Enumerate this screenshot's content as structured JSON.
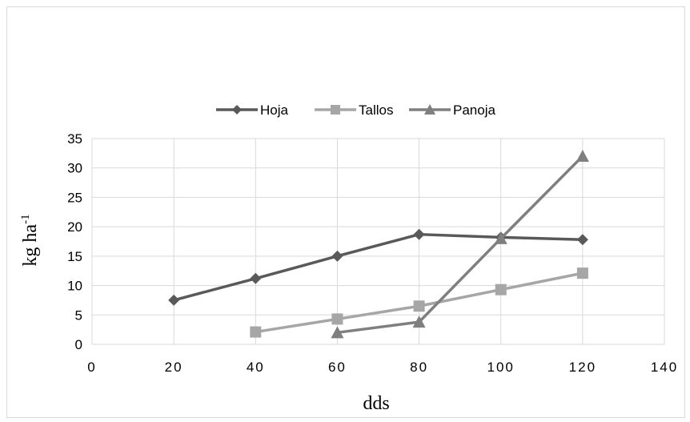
{
  "chart_data": {
    "type": "line",
    "xlabel": "dds",
    "ylabel": "kg ha",
    "ylabel_superscript": "-1",
    "xlim": [
      0,
      140
    ],
    "ylim": [
      0,
      35
    ],
    "xticks": [
      "0",
      "20",
      "40",
      "60",
      "80",
      "100",
      "120",
      "140"
    ],
    "yticks": [
      "0",
      "5",
      "10",
      "15",
      "20",
      "25",
      "30",
      "35"
    ],
    "grid": "horizontal",
    "legend_position": "top",
    "series": [
      {
        "name": "Hoja",
        "marker": "diamond",
        "color": "#595959",
        "points": [
          {
            "x": 20,
            "y": 7.5
          },
          {
            "x": 40,
            "y": 11.2
          },
          {
            "x": 60,
            "y": 15.0
          },
          {
            "x": 80,
            "y": 18.7
          },
          {
            "x": 100,
            "y": 18.2
          },
          {
            "x": 120,
            "y": 17.8
          }
        ]
      },
      {
        "name": "Tallos",
        "marker": "square",
        "color": "#a6a6a6",
        "points": [
          {
            "x": 40,
            "y": 2.1
          },
          {
            "x": 60,
            "y": 4.3
          },
          {
            "x": 80,
            "y": 6.5
          },
          {
            "x": 100,
            "y": 9.3
          },
          {
            "x": 120,
            "y": 12.1
          }
        ]
      },
      {
        "name": "Panoja",
        "marker": "triangle",
        "color": "#7f7f7f",
        "points": [
          {
            "x": 60,
            "y": 2.0
          },
          {
            "x": 80,
            "y": 3.8
          },
          {
            "x": 100,
            "y": 18.0
          },
          {
            "x": 120,
            "y": 32.0
          }
        ]
      }
    ]
  }
}
